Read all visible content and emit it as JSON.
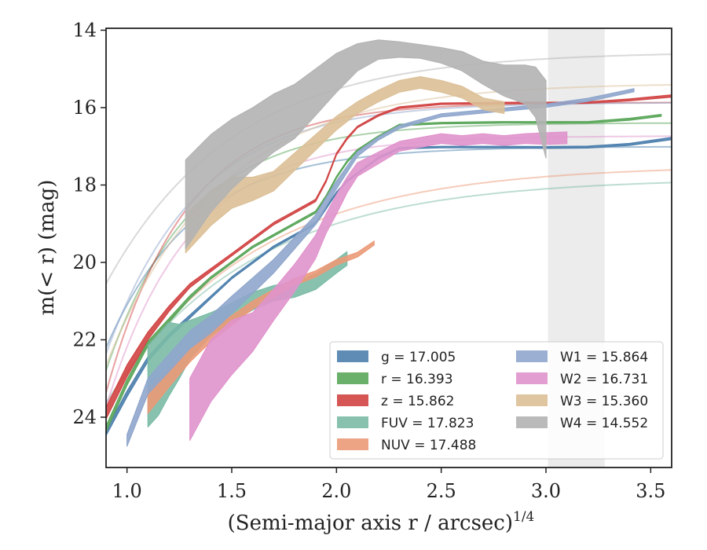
{
  "chart_data": {
    "type": "line",
    "xlabel": "(Semi-major axis r / arcsec)",
    "xlabel_sup": "1/4",
    "ylabel": "m(< r) (mag)",
    "xlim": [
      0.9,
      3.6
    ],
    "ylim": [
      25.3,
      13.95
    ],
    "y_inverted": true,
    "x_ticks": [
      1.0,
      1.5,
      2.0,
      2.5,
      3.0,
      3.5
    ],
    "x_tick_labels": [
      "1.0",
      "1.5",
      "2.0",
      "2.5",
      "3.0",
      "3.5"
    ],
    "y_ticks": [
      14,
      16,
      18,
      20,
      22,
      24
    ],
    "y_tick_labels": [
      "14",
      "16",
      "18",
      "20",
      "22",
      "24"
    ],
    "grid": false,
    "legend_position": "bottom-right",
    "legend_columns": 2,
    "shaded_region": {
      "x_start": 3.01,
      "x_end": 3.28,
      "color": "#ececec"
    },
    "series": [
      {
        "name": "g",
        "legend_label": "g = 17.005",
        "color": "#4c7fad",
        "kind": "band",
        "x": [
          0.9,
          1.0,
          1.1,
          1.2,
          1.3,
          1.4,
          1.5,
          1.6,
          1.7,
          1.8,
          1.9,
          1.95,
          2.0,
          2.05,
          2.1,
          2.2,
          2.3,
          2.5,
          2.8,
          3.0,
          3.2,
          3.4,
          3.6
        ],
        "y": [
          24.4,
          23.4,
          22.5,
          21.9,
          21.4,
          20.9,
          20.4,
          20.0,
          19.6,
          19.3,
          19.0,
          18.6,
          18.2,
          17.9,
          17.7,
          17.3,
          17.05,
          17.02,
          17.02,
          17.03,
          17.02,
          16.95,
          16.8
        ],
        "width": [
          0.15,
          0.15,
          0.12,
          0.1,
          0.08,
          0.06,
          0.05,
          0.05,
          0.05,
          0.05,
          0.05,
          0.05,
          0.04,
          0.04,
          0.04,
          0.04,
          0.04,
          0.04,
          0.04,
          0.05,
          0.05,
          0.05,
          0.06
        ]
      },
      {
        "name": "r",
        "legend_label": "r = 16.393",
        "color": "#5aa65a",
        "kind": "band",
        "x": [
          0.9,
          1.0,
          1.1,
          1.2,
          1.3,
          1.4,
          1.5,
          1.6,
          1.7,
          1.8,
          1.9,
          1.95,
          2.0,
          2.05,
          2.1,
          2.2,
          2.3,
          2.5,
          2.8,
          3.0,
          3.2,
          3.4,
          3.55
        ],
        "y": [
          24.3,
          23.1,
          22.1,
          21.5,
          20.9,
          20.4,
          20.0,
          19.6,
          19.3,
          19.0,
          18.7,
          18.3,
          17.8,
          17.4,
          17.1,
          16.75,
          16.45,
          16.4,
          16.38,
          16.38,
          16.38,
          16.3,
          16.2
        ],
        "width": [
          0.15,
          0.15,
          0.12,
          0.1,
          0.08,
          0.06,
          0.05,
          0.05,
          0.05,
          0.05,
          0.05,
          0.05,
          0.05,
          0.05,
          0.04,
          0.04,
          0.04,
          0.04,
          0.04,
          0.04,
          0.04,
          0.05,
          0.05
        ]
      },
      {
        "name": "z",
        "legend_label": "z = 15.862",
        "color": "#d14444",
        "kind": "band",
        "x": [
          0.9,
          1.0,
          1.1,
          1.2,
          1.3,
          1.4,
          1.5,
          1.6,
          1.7,
          1.8,
          1.9,
          1.95,
          2.0,
          2.05,
          2.1,
          2.2,
          2.3,
          2.5,
          2.8,
          3.0,
          3.2,
          3.4,
          3.6
        ],
        "y": [
          23.9,
          22.8,
          21.9,
          21.2,
          20.6,
          20.2,
          19.8,
          19.4,
          19.0,
          18.7,
          18.4,
          17.9,
          17.2,
          16.8,
          16.5,
          16.2,
          16.0,
          15.9,
          15.88,
          15.88,
          15.87,
          15.8,
          15.7
        ],
        "width": [
          0.3,
          0.3,
          0.2,
          0.14,
          0.1,
          0.08,
          0.06,
          0.06,
          0.06,
          0.06,
          0.06,
          0.06,
          0.05,
          0.05,
          0.04,
          0.04,
          0.04,
          0.04,
          0.04,
          0.04,
          0.04,
          0.05,
          0.06
        ]
      },
      {
        "name": "FUV",
        "legend_label": "FUV = 17.823",
        "color": "#7bbba6",
        "kind": "band",
        "x": [
          1.1,
          1.15,
          1.2,
          1.25,
          1.3,
          1.4,
          1.5,
          1.6,
          1.7,
          1.8,
          1.9,
          2.0,
          2.05
        ],
        "y": [
          23.2,
          22.9,
          22.5,
          22.3,
          22.0,
          21.6,
          21.3,
          21.0,
          20.8,
          20.7,
          20.5,
          20.1,
          19.9
        ],
        "width": [
          2.1,
          2.1,
          1.9,
          1.4,
          1.0,
          0.6,
          0.5,
          0.45,
          0.4,
          0.4,
          0.4,
          0.35,
          0.35
        ]
      },
      {
        "name": "NUV",
        "legend_label": "NUV = 17.488",
        "color": "#eb9a78",
        "kind": "band",
        "x": [
          1.1,
          1.2,
          1.3,
          1.4,
          1.5,
          1.6,
          1.7,
          1.8,
          1.9,
          2.0,
          2.1,
          2.18
        ],
        "y": [
          23.6,
          23.0,
          22.4,
          21.9,
          21.5,
          21.1,
          20.8,
          20.5,
          20.3,
          20.0,
          19.8,
          19.5
        ],
        "width": [
          0.6,
          0.45,
          0.35,
          0.3,
          0.25,
          0.2,
          0.2,
          0.18,
          0.16,
          0.14,
          0.12,
          0.1
        ]
      },
      {
        "name": "W1",
        "legend_label": "W1 = 15.864",
        "color": "#8fa6cc",
        "kind": "band",
        "x": [
          1.0,
          1.1,
          1.2,
          1.3,
          1.4,
          1.5,
          1.6,
          1.7,
          1.8,
          1.9,
          2.0,
          2.1,
          2.2,
          2.3,
          2.5,
          2.8,
          3.0,
          3.2,
          3.42
        ],
        "y": [
          24.6,
          23.2,
          22.6,
          22.0,
          21.6,
          21.1,
          20.6,
          20.1,
          19.5,
          18.9,
          18.0,
          17.2,
          16.8,
          16.5,
          16.2,
          16.05,
          15.95,
          15.8,
          15.55
        ],
        "width": [
          0.3,
          0.4,
          0.45,
          0.45,
          0.45,
          0.45,
          0.4,
          0.35,
          0.3,
          0.25,
          0.2,
          0.12,
          0.08,
          0.08,
          0.08,
          0.08,
          0.08,
          0.08,
          0.08
        ]
      },
      {
        "name": "W2",
        "legend_label": "W2 = 16.731",
        "color": "#e093cc",
        "kind": "band",
        "x": [
          1.3,
          1.4,
          1.5,
          1.6,
          1.7,
          1.8,
          1.9,
          1.95,
          2.0,
          2.05,
          2.1,
          2.2,
          2.3,
          2.4,
          2.5,
          2.6,
          2.7,
          2.8,
          2.9,
          3.0,
          3.1
        ],
        "y": [
          23.8,
          22.8,
          22.2,
          21.8,
          21.1,
          20.4,
          19.6,
          19.0,
          18.5,
          18.0,
          17.6,
          17.3,
          17.0,
          16.9,
          16.8,
          16.85,
          16.8,
          16.85,
          16.8,
          16.8,
          16.78
        ],
        "width": [
          1.6,
          1.6,
          1.4,
          1.0,
          0.8,
          0.7,
          0.6,
          0.5,
          0.5,
          0.4,
          0.35,
          0.3,
          0.25,
          0.25,
          0.25,
          0.25,
          0.25,
          0.25,
          0.25,
          0.3,
          0.3
        ]
      },
      {
        "name": "W3",
        "legend_label": "W3 = 15.360",
        "color": "#dcc097",
        "kind": "band",
        "x": [
          1.28,
          1.4,
          1.5,
          1.6,
          1.7,
          1.8,
          1.9,
          2.0,
          2.1,
          2.2,
          2.3,
          2.4,
          2.5,
          2.6,
          2.7,
          2.8
        ],
        "y": [
          19.25,
          18.6,
          18.2,
          18.1,
          17.9,
          17.4,
          16.9,
          16.4,
          16.0,
          15.7,
          15.45,
          15.35,
          15.45,
          15.6,
          15.9,
          16.0
        ],
        "width": [
          1.0,
          0.9,
          0.8,
          0.6,
          0.5,
          0.45,
          0.4,
          0.35,
          0.3,
          0.3,
          0.3,
          0.3,
          0.3,
          0.3,
          0.3,
          0.3
        ]
      },
      {
        "name": "W4",
        "legend_label": "W4 = 14.552",
        "color": "#b3b3b3",
        "kind": "band",
        "x": [
          1.28,
          1.4,
          1.5,
          1.6,
          1.7,
          1.8,
          1.9,
          2.0,
          2.1,
          2.2,
          2.3,
          2.4,
          2.5,
          2.6,
          2.7,
          2.8,
          2.9,
          2.95,
          3.0
        ],
        "y": [
          18.5,
          17.7,
          17.2,
          16.8,
          16.4,
          16.1,
          15.6,
          15.1,
          14.7,
          14.5,
          14.5,
          14.55,
          14.65,
          14.8,
          15.1,
          15.3,
          15.4,
          15.6,
          16.3
        ],
        "width": [
          2.3,
          2.0,
          1.8,
          1.6,
          1.5,
          1.4,
          1.2,
          1.0,
          0.7,
          0.5,
          0.4,
          0.35,
          0.4,
          0.5,
          0.6,
          0.8,
          1.0,
          1.3,
          2.0
        ]
      }
    ],
    "model_curves": [
      {
        "name": "g",
        "color": "#4c7fad",
        "asymptote": 17.005,
        "a": 5.2,
        "b": 2.4
      },
      {
        "name": "r",
        "color": "#5aa65a",
        "asymptote": 16.393,
        "a": 6.4,
        "b": 2.5
      },
      {
        "name": "z",
        "color": "#d14444",
        "asymptote": 15.862,
        "a": 7.5,
        "b": 2.6
      },
      {
        "name": "FUV",
        "color": "#7bbba6",
        "asymptote": 17.823,
        "a": 5.8,
        "b": 1.45
      },
      {
        "name": "NUV",
        "color": "#eb9a78",
        "asymptote": 17.488,
        "a": 6.2,
        "b": 1.45
      },
      {
        "name": "W1",
        "color": "#8fa6cc",
        "asymptote": 15.864,
        "a": 6.5,
        "b": 2.3
      },
      {
        "name": "W2",
        "color": "#e093cc",
        "asymptote": 16.731,
        "a": 7.0,
        "b": 2.5
      },
      {
        "name": "W3",
        "color": "#dcc097",
        "asymptote": 15.36,
        "a": 7.3,
        "b": 1.85
      },
      {
        "name": "W4",
        "color": "#b3b3b3",
        "asymptote": 14.552,
        "a": 6.0,
        "b": 1.65
      }
    ]
  }
}
